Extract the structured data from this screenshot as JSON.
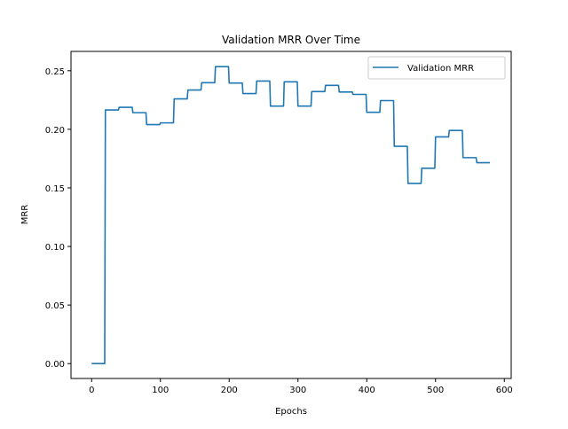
{
  "chart_data": {
    "type": "line",
    "title": "Validation MRR Over Time",
    "xlabel": "Epochs",
    "ylabel": "MRR",
    "xlim": [
      -30,
      610
    ],
    "ylim": [
      -0.0127,
      0.2665
    ],
    "xticks": [
      0,
      100,
      200,
      300,
      400,
      500,
      600
    ],
    "yticks": [
      0.0,
      0.05,
      0.1,
      0.15,
      0.2,
      0.25
    ],
    "xtick_labels": [
      "0",
      "100",
      "200",
      "300",
      "400",
      "500",
      "600"
    ],
    "ytick_labels": [
      "0.00",
      "0.05",
      "0.10",
      "0.15",
      "0.20",
      "0.25"
    ],
    "grid": false,
    "legend_position": "top-right",
    "series": [
      {
        "name": "Validation MRR",
        "color": "#1f77b4",
        "x": [
          0,
          1,
          2,
          3,
          4,
          5,
          6,
          7,
          8,
          9,
          10,
          11,
          12,
          13,
          14,
          15,
          16,
          17,
          18,
          19,
          20,
          21,
          22,
          23,
          24,
          25,
          26,
          27,
          28,
          29,
          30,
          31,
          32,
          33,
          34,
          35,
          36,
          37,
          38,
          39,
          40,
          41,
          42,
          43,
          44,
          45,
          46,
          47,
          48,
          49,
          50,
          51,
          52,
          53,
          54,
          55,
          56,
          57,
          58,
          59,
          60,
          61,
          62,
          63,
          64,
          65,
          66,
          67,
          68,
          69,
          70,
          71,
          72,
          73,
          74,
          75,
          76,
          77,
          78,
          79,
          80,
          81,
          82,
          83,
          84,
          85,
          86,
          87,
          88,
          89,
          90,
          91,
          92,
          93,
          94,
          95,
          96,
          97,
          98,
          99,
          100,
          101,
          102,
          103,
          104,
          105,
          106,
          107,
          108,
          109,
          110,
          111,
          112,
          113,
          114,
          115,
          116,
          117,
          118,
          119,
          120,
          121,
          122,
          123,
          124,
          125,
          126,
          127,
          128,
          129,
          130,
          131,
          132,
          133,
          134,
          135,
          136,
          137,
          138,
          139,
          140,
          141,
          142,
          143,
          144,
          145,
          146,
          147,
          148,
          149,
          150,
          151,
          152,
          153,
          154,
          155,
          156,
          157,
          158,
          159,
          160,
          161,
          162,
          163,
          164,
          165,
          166,
          167,
          168,
          169,
          170,
          171,
          172,
          173,
          174,
          175,
          176,
          177,
          178,
          179,
          180,
          181,
          182,
          183,
          184,
          185,
          186,
          187,
          188,
          189,
          190,
          191,
          192,
          193,
          194,
          195,
          196,
          197,
          198,
          199,
          200,
          201,
          202,
          203,
          204,
          205,
          206,
          207,
          208,
          209,
          210,
          211,
          212,
          213,
          214,
          215,
          216,
          217,
          218,
          219,
          220,
          221,
          222,
          223,
          224,
          225,
          226,
          227,
          228,
          229,
          230,
          231,
          232,
          233,
          234,
          235,
          236,
          237,
          238,
          239,
          240,
          241,
          242,
          243,
          244,
          245,
          246,
          247,
          248,
          249,
          250,
          251,
          252,
          253,
          254,
          255,
          256,
          257,
          258,
          259,
          260,
          261,
          262,
          263,
          264,
          265,
          266,
          267,
          268,
          269,
          270,
          271,
          272,
          273,
          274,
          275,
          276,
          277,
          278,
          279,
          280,
          281,
          282,
          283,
          284,
          285,
          286,
          287,
          288,
          289,
          290,
          291,
          292,
          293,
          294,
          295,
          296,
          297,
          298,
          299,
          300,
          301,
          302,
          303,
          304,
          305,
          306,
          307,
          308,
          309,
          310,
          311,
          312,
          313,
          314,
          315,
          316,
          317,
          318,
          319,
          320,
          321,
          322,
          323,
          324,
          325,
          326,
          327,
          328,
          329,
          330,
          331,
          332,
          333,
          334,
          335,
          336,
          337,
          338,
          339,
          340,
          341,
          342,
          343,
          344,
          345,
          346,
          347,
          348,
          349,
          350,
          351,
          352,
          353,
          354,
          355,
          356,
          357,
          358,
          359,
          360,
          361,
          362,
          363,
          364,
          365,
          366,
          367,
          368,
          369,
          370,
          371,
          372,
          373,
          374,
          375,
          376,
          377,
          378,
          379,
          380,
          381,
          382,
          383,
          384,
          385,
          386,
          387,
          388,
          389,
          390,
          391,
          392,
          393,
          394,
          395,
          396,
          397,
          398,
          399,
          400,
          401,
          402,
          403,
          404,
          405,
          406,
          407,
          408,
          409,
          410,
          411,
          412,
          413,
          414,
          415,
          416,
          417,
          418,
          419,
          420,
          421,
          422,
          423,
          424,
          425,
          426,
          427,
          428,
          429,
          430,
          431,
          432,
          433,
          434,
          435,
          436,
          437,
          438,
          439,
          440,
          441,
          442,
          443,
          444,
          445,
          446,
          447,
          448,
          449,
          450,
          451,
          452,
          453,
          454,
          455,
          456,
          457,
          458,
          459,
          460,
          461,
          462,
          463,
          464,
          465,
          466,
          467,
          468,
          469,
          470,
          471,
          472,
          473,
          474,
          475,
          476,
          477,
          478,
          479,
          480,
          481,
          482,
          483,
          484,
          485,
          486,
          487,
          488,
          489,
          490,
          491,
          492,
          493,
          494,
          495,
          496,
          497,
          498,
          499,
          500,
          501,
          502,
          503,
          504,
          505,
          506,
          507,
          508,
          509,
          510,
          511,
          512,
          513,
          514,
          515,
          516,
          517,
          518,
          519,
          520,
          521,
          522,
          523,
          524,
          525,
          526,
          527,
          528,
          529,
          530,
          531,
          532,
          533,
          534,
          535,
          536,
          537,
          538,
          539,
          540,
          541,
          542,
          543,
          544,
          545,
          546,
          547,
          548,
          549,
          550,
          551,
          552,
          553,
          554,
          555,
          556,
          557,
          558,
          559,
          560,
          561,
          562,
          563,
          564,
          565,
          566,
          567,
          568,
          569,
          570,
          571,
          572,
          573,
          574,
          575,
          576,
          577,
          578,
          579
        ],
        "y": [
          0,
          0,
          0,
          0,
          0,
          0,
          0,
          0,
          0,
          0,
          0,
          0,
          0,
          0,
          0,
          0,
          0,
          0,
          0,
          0,
          0.2165,
          0.2165,
          0.2165,
          0.2165,
          0.2165,
          0.2165,
          0.2165,
          0.2165,
          0.2165,
          0.2165,
          0.2165,
          0.2165,
          0.2165,
          0.2165,
          0.2165,
          0.2165,
          0.2165,
          0.2165,
          0.2165,
          0.2165,
          0.2188,
          0.2188,
          0.2188,
          0.2188,
          0.2188,
          0.2188,
          0.2188,
          0.2188,
          0.2188,
          0.2188,
          0.2188,
          0.2188,
          0.2188,
          0.2188,
          0.2188,
          0.2188,
          0.2188,
          0.2188,
          0.2188,
          0.2188,
          0.2142,
          0.2142,
          0.2142,
          0.2142,
          0.2142,
          0.2142,
          0.2142,
          0.2142,
          0.2142,
          0.2142,
          0.2142,
          0.2142,
          0.2142,
          0.2142,
          0.2142,
          0.2142,
          0.2142,
          0.2142,
          0.2142,
          0.2142,
          0.204,
          0.204,
          0.204,
          0.204,
          0.204,
          0.204,
          0.204,
          0.204,
          0.204,
          0.204,
          0.204,
          0.204,
          0.204,
          0.204,
          0.204,
          0.204,
          0.204,
          0.204,
          0.204,
          0.204,
          0.2055,
          0.2055,
          0.2055,
          0.2055,
          0.2055,
          0.2055,
          0.2055,
          0.2055,
          0.2055,
          0.2055,
          0.2055,
          0.2055,
          0.2055,
          0.2055,
          0.2055,
          0.2055,
          0.2055,
          0.2055,
          0.2055,
          0.2055,
          0.226,
          0.226,
          0.226,
          0.226,
          0.226,
          0.226,
          0.226,
          0.226,
          0.226,
          0.226,
          0.226,
          0.226,
          0.226,
          0.226,
          0.226,
          0.226,
          0.226,
          0.226,
          0.226,
          0.226,
          0.2335,
          0.2335,
          0.2335,
          0.2335,
          0.2335,
          0.2335,
          0.2335,
          0.2335,
          0.2335,
          0.2335,
          0.2335,
          0.2335,
          0.2335,
          0.2335,
          0.2335,
          0.2335,
          0.2335,
          0.2335,
          0.2335,
          0.2335,
          0.2398,
          0.2398,
          0.2398,
          0.2398,
          0.2398,
          0.2398,
          0.2398,
          0.2398,
          0.2398,
          0.2398,
          0.2398,
          0.2398,
          0.2398,
          0.2398,
          0.2398,
          0.2398,
          0.2398,
          0.2398,
          0.2398,
          0.2398,
          0.2535,
          0.2535,
          0.2535,
          0.2535,
          0.2535,
          0.2535,
          0.2535,
          0.2535,
          0.2535,
          0.2535,
          0.2535,
          0.2535,
          0.2535,
          0.2535,
          0.2535,
          0.2535,
          0.2535,
          0.2535,
          0.2535,
          0.2535,
          0.2395,
          0.2395,
          0.2395,
          0.2395,
          0.2395,
          0.2395,
          0.2395,
          0.2395,
          0.2395,
          0.2395,
          0.2395,
          0.2395,
          0.2395,
          0.2395,
          0.2395,
          0.2395,
          0.2395,
          0.2395,
          0.2395,
          0.2395,
          0.2305,
          0.2305,
          0.2305,
          0.2305,
          0.2305,
          0.2305,
          0.2305,
          0.2305,
          0.2305,
          0.2305,
          0.2305,
          0.2305,
          0.2305,
          0.2305,
          0.2305,
          0.2305,
          0.2305,
          0.2305,
          0.2305,
          0.2305,
          0.2412,
          0.2412,
          0.2412,
          0.2412,
          0.2412,
          0.2412,
          0.2412,
          0.2412,
          0.2412,
          0.2412,
          0.2412,
          0.2412,
          0.2412,
          0.2412,
          0.2412,
          0.2412,
          0.2412,
          0.2412,
          0.2412,
          0.2412,
          0.2198,
          0.2198,
          0.2198,
          0.2198,
          0.2198,
          0.2198,
          0.2198,
          0.2198,
          0.2198,
          0.2198,
          0.2198,
          0.2198,
          0.2198,
          0.2198,
          0.2198,
          0.2198,
          0.2198,
          0.2198,
          0.2198,
          0.2198,
          0.2405,
          0.2405,
          0.2405,
          0.2405,
          0.2405,
          0.2405,
          0.2405,
          0.2405,
          0.2405,
          0.2405,
          0.2405,
          0.2405,
          0.2405,
          0.2405,
          0.2405,
          0.2405,
          0.2405,
          0.2405,
          0.2405,
          0.2405,
          0.2198,
          0.2198,
          0.2198,
          0.2198,
          0.2198,
          0.2198,
          0.2198,
          0.2198,
          0.2198,
          0.2198,
          0.2198,
          0.2198,
          0.2198,
          0.2198,
          0.2198,
          0.2198,
          0.2198,
          0.2198,
          0.2198,
          0.2198,
          0.2322,
          0.2322,
          0.2322,
          0.2322,
          0.2322,
          0.2322,
          0.2322,
          0.2322,
          0.2322,
          0.2322,
          0.2322,
          0.2322,
          0.2322,
          0.2322,
          0.2322,
          0.2322,
          0.2322,
          0.2322,
          0.2322,
          0.2322,
          0.2375,
          0.2375,
          0.2375,
          0.2375,
          0.2375,
          0.2375,
          0.2375,
          0.2375,
          0.2375,
          0.2375,
          0.2375,
          0.2375,
          0.2375,
          0.2375,
          0.2375,
          0.2375,
          0.2375,
          0.2375,
          0.2375,
          0.2375,
          0.2318,
          0.2318,
          0.2318,
          0.2318,
          0.2318,
          0.2318,
          0.2318,
          0.2318,
          0.2318,
          0.2318,
          0.2318,
          0.2318,
          0.2318,
          0.2318,
          0.2318,
          0.2318,
          0.2318,
          0.2318,
          0.2318,
          0.2318,
          0.2298,
          0.2298,
          0.2298,
          0.2298,
          0.2298,
          0.2298,
          0.2298,
          0.2298,
          0.2298,
          0.2298,
          0.2298,
          0.2298,
          0.2298,
          0.2298,
          0.2298,
          0.2298,
          0.2298,
          0.2298,
          0.2298,
          0.2298,
          0.2145,
          0.2145,
          0.2145,
          0.2145,
          0.2145,
          0.2145,
          0.2145,
          0.2145,
          0.2145,
          0.2145,
          0.2145,
          0.2145,
          0.2145,
          0.2145,
          0.2145,
          0.2145,
          0.2145,
          0.2145,
          0.2145,
          0.2145,
          0.2245,
          0.2245,
          0.2245,
          0.2245,
          0.2245,
          0.2245,
          0.2245,
          0.2245,
          0.2245,
          0.2245,
          0.2245,
          0.2245,
          0.2245,
          0.2245,
          0.2245,
          0.2245,
          0.2245,
          0.2245,
          0.2245,
          0.2245,
          0.1855,
          0.1855,
          0.1855,
          0.1855,
          0.1855,
          0.1855,
          0.1855,
          0.1855,
          0.1855,
          0.1855,
          0.1855,
          0.1855,
          0.1855,
          0.1855,
          0.1855,
          0.1855,
          0.1855,
          0.1855,
          0.1855,
          0.1855,
          0.1538,
          0.1538,
          0.1538,
          0.1538,
          0.1538,
          0.1538,
          0.1538,
          0.1538,
          0.1538,
          0.1538,
          0.1538,
          0.1538,
          0.1538,
          0.1538,
          0.1538,
          0.1538,
          0.1538,
          0.1538,
          0.1538,
          0.1538,
          0.1668,
          0.1668,
          0.1668,
          0.1668,
          0.1668,
          0.1668,
          0.1668,
          0.1668,
          0.1668,
          0.1668,
          0.1668,
          0.1668,
          0.1668,
          0.1668,
          0.1668,
          0.1668,
          0.1668,
          0.1668,
          0.1668,
          0.1668,
          0.1935,
          0.1935,
          0.1935,
          0.1935,
          0.1935,
          0.1935,
          0.1935,
          0.1935,
          0.1935,
          0.1935,
          0.1935,
          0.1935,
          0.1935,
          0.1935,
          0.1935,
          0.1935,
          0.1935,
          0.1935,
          0.1935,
          0.1935,
          0.199,
          0.199,
          0.199,
          0.199,
          0.199,
          0.199,
          0.199,
          0.199,
          0.199,
          0.199,
          0.199,
          0.199,
          0.199,
          0.199,
          0.199,
          0.199,
          0.199,
          0.199,
          0.199,
          0.199,
          0.1758,
          0.1758,
          0.1758,
          0.1758,
          0.1758,
          0.1758,
          0.1758,
          0.1758,
          0.1758,
          0.1758,
          0.1758,
          0.1758,
          0.1758,
          0.1758,
          0.1758,
          0.1758,
          0.1758,
          0.1758,
          0.1758,
          0.1758,
          0.1715,
          0.1715,
          0.1715,
          0.1715,
          0.1715,
          0.1715,
          0.1715,
          0.1715,
          0.1715,
          0.1715,
          0.1715,
          0.1715,
          0.1715,
          0.1715,
          0.1715,
          0.1715,
          0.1715,
          0.1715,
          0.1715,
          0.1715
        ]
      }
    ]
  }
}
